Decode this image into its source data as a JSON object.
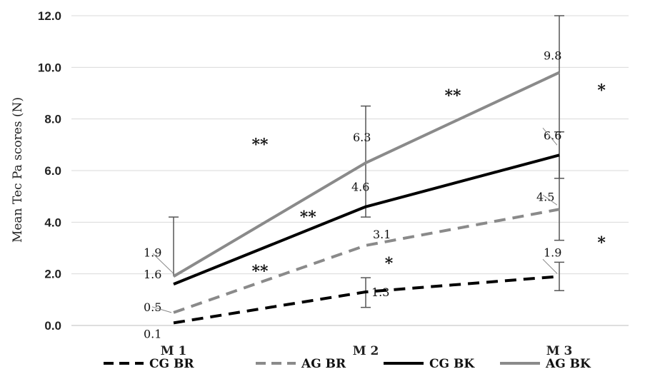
{
  "chart_data": {
    "type": "line",
    "ylabel": "Mean Tec Pa scores (N)",
    "xlabel": "",
    "ylim": [
      0,
      12
    ],
    "ytick_labels": [
      "0.0",
      "2.0",
      "4.0",
      "6.0",
      "8.0",
      "10.0",
      "12.0"
    ],
    "categories": [
      "M 1",
      "M 2",
      "M 3"
    ],
    "grid": "horizontal",
    "legend_position": "bottom",
    "series": [
      {
        "name": "CG BR",
        "values": [
          0.1,
          1.3,
          1.9
        ],
        "labels": [
          "0.1",
          "1.3",
          "1.9"
        ],
        "color": "#000000",
        "dash": true,
        "error_low": [
          null,
          0.7,
          1.35
        ],
        "error_high": [
          null,
          1.85,
          2.45
        ]
      },
      {
        "name": "AG BR",
        "values": [
          0.5,
          3.1,
          4.5
        ],
        "labels": [
          "0.5",
          "3.1",
          "4.5"
        ],
        "color": "#8a8a8a",
        "dash": true,
        "error_low": [
          null,
          null,
          null
        ],
        "error_high": [
          null,
          null,
          null
        ]
      },
      {
        "name": "CG BK",
        "values": [
          1.6,
          4.6,
          6.6
        ],
        "labels": [
          "1.6",
          "4.6",
          "6.6"
        ],
        "color": "#000000",
        "dash": false,
        "error_low": [
          null,
          null,
          5.7
        ],
        "error_high": [
          null,
          null,
          7.5
        ]
      },
      {
        "name": "AG BK",
        "values": [
          1.9,
          6.3,
          9.8
        ],
        "labels": [
          "1.9",
          "6.3",
          "9.8"
        ],
        "color": "#8a8a8a",
        "dash": false,
        "error_low": [
          null,
          4.2,
          3.3
        ],
        "error_high": [
          4.2,
          8.5,
          12.0
        ]
      }
    ],
    "annotations": [
      {
        "text": "**",
        "x": 1.45,
        "y": 6.8
      },
      {
        "text": "**",
        "x": 1.7,
        "y": 4.0
      },
      {
        "text": "**",
        "x": 1.45,
        "y": 1.9
      },
      {
        "text": "*",
        "x": 2.12,
        "y": 2.2
      },
      {
        "text": "**",
        "x": 2.45,
        "y": 8.7
      },
      {
        "text": "*",
        "x": 3.22,
        "y": 8.9
      },
      {
        "text": "*",
        "x": 3.22,
        "y": 3.0
      }
    ]
  }
}
